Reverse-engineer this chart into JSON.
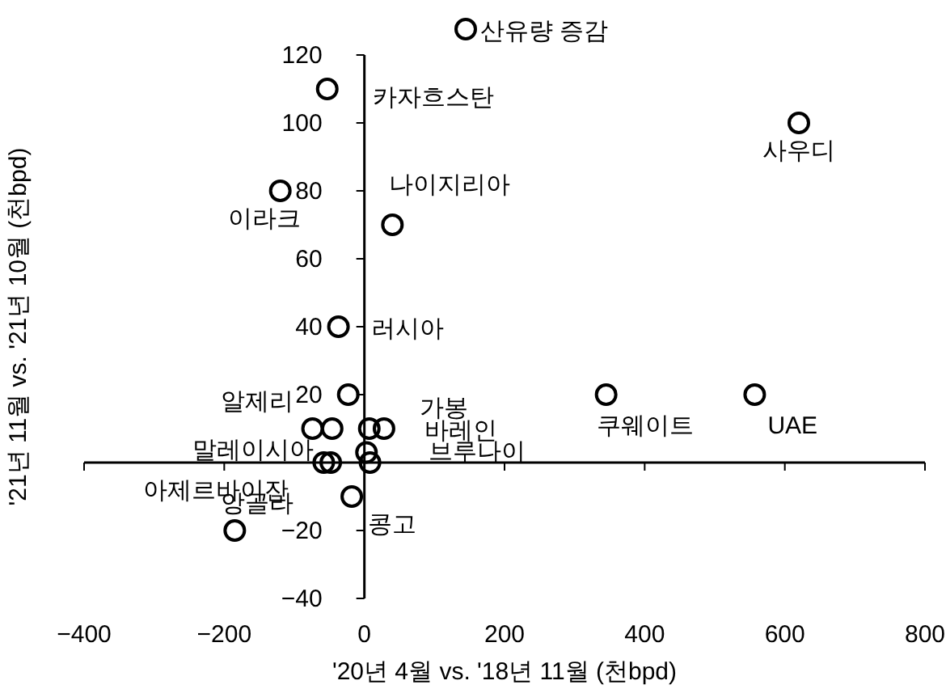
{
  "chart_data": {
    "type": "scatter",
    "xlabel": "'20년 4월 vs. '18년 11월 (천bpd)",
    "ylabel": "'21년 11월 vs. '21년 10월 (천bpd)",
    "xlim": [
      -400,
      800
    ],
    "ylim": [
      -40,
      120
    ],
    "xticks": [
      -400,
      -200,
      0,
      200,
      400,
      600,
      800
    ],
    "yticks": [
      -40,
      -20,
      {
        "value": 0,
        "label": null
      },
      20,
      40,
      60,
      80,
      100,
      120
    ],
    "marker": "circle",
    "legend": "top",
    "series": [
      {
        "name": "산유량 증감",
        "color": "#000000",
        "x": [
          -53,
          620,
          -120,
          40,
          -37,
          345,
          557,
          -74,
          28,
          7,
          -58,
          8,
          -48,
          -185,
          -18,
          -23,
          -46,
          3
        ],
        "values": [
          110,
          100,
          80,
          70,
          40,
          20,
          20,
          10,
          10,
          10,
          0,
          0,
          0,
          -20,
          -10,
          20,
          10,
          3
        ]
      }
    ],
    "annotations": [
      {
        "text": "카자흐스탄",
        "x": -53,
        "y": 110
      },
      {
        "text": "사우디",
        "x": 620,
        "y": 100
      },
      {
        "text": "이라크",
        "x": -120,
        "y": 80
      },
      {
        "text": "나이지리아",
        "x": 40,
        "y": 70
      },
      {
        "text": "러시아",
        "x": -37,
        "y": 40
      },
      {
        "text": "쿠웨이트",
        "x": 345,
        "y": 20
      },
      {
        "text": "UAE",
        "x": 557,
        "y": 20
      },
      {
        "text": "알제리",
        "x": -74,
        "y": 10
      },
      {
        "text": "가봉",
        "x": 28,
        "y": 10
      },
      {
        "text": "바레인",
        "x": 7,
        "y": 10
      },
      {
        "text": "말레이시아",
        "x": -58,
        "y": 0
      },
      {
        "text": "브루나이",
        "x": 8,
        "y": 0
      },
      {
        "text": "아제르바이잔",
        "x": -48,
        "y": 0
      },
      {
        "text": "앙골라",
        "x": -185,
        "y": -20
      },
      {
        "text": "콩고",
        "x": -18,
        "y": -10
      }
    ]
  }
}
